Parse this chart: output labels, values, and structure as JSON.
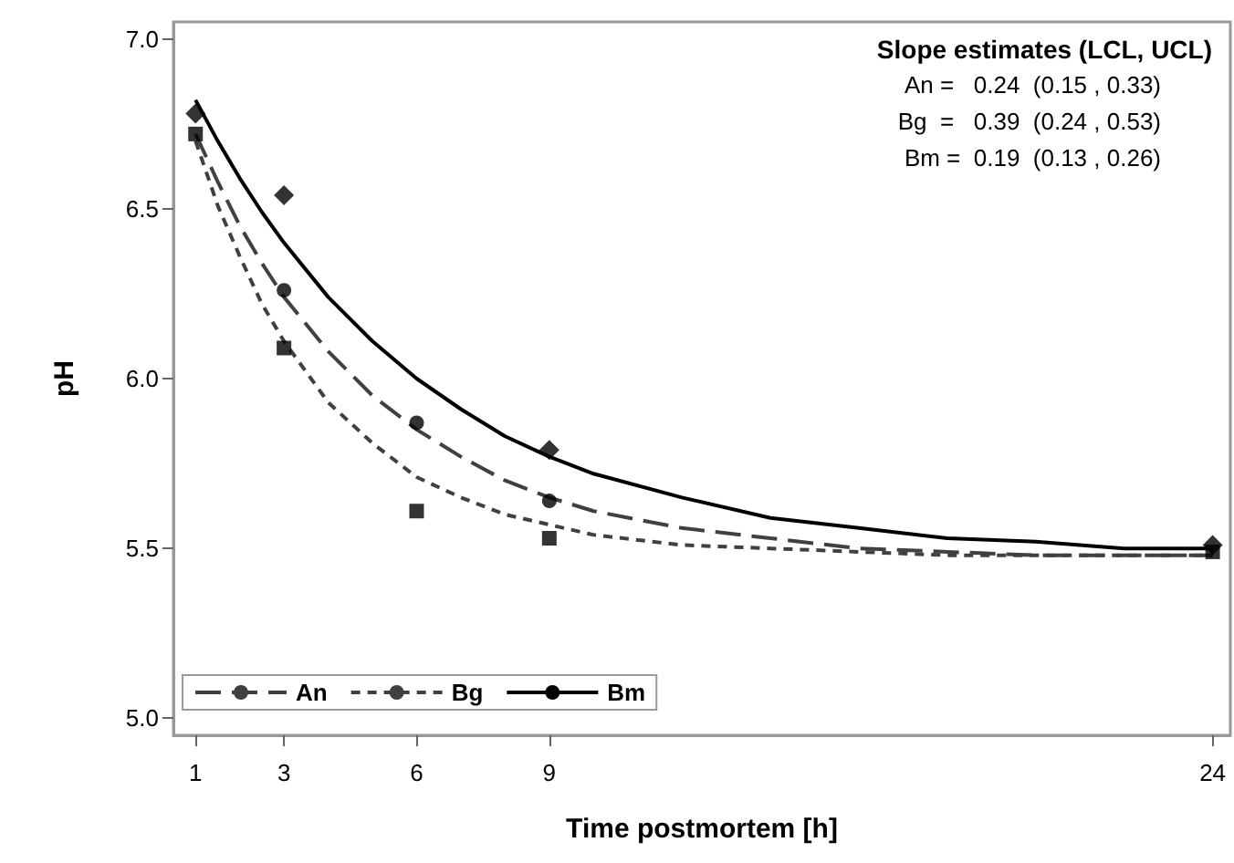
{
  "chart_data": {
    "type": "line",
    "xlabel": "Time postmortem [h]",
    "ylabel": "pH",
    "annotations": [
      "Slope estimates (LCL, UCL)",
      "An =   0.24  (0.15 , 0.33)",
      "Bg  =   0.39  (0.24 , 0.53)",
      "Bm =  0.19  (0.13 , 0.26)"
    ],
    "xlim": [
      0.5,
      24.4
    ],
    "xticks": [
      1,
      3,
      6,
      9,
      24
    ],
    "ylim": [
      4.95,
      7.05
    ],
    "yticks": [
      {
        "value": 5,
        "label": "5.0"
      },
      {
        "value": 5.5,
        "label": "5.5"
      },
      {
        "value": 6,
        "label": "6.0"
      },
      {
        "value": 6.5,
        "label": "6.5"
      },
      {
        "value": 7,
        "label": "7.0"
      }
    ],
    "grid": false,
    "legend": "bottom left",
    "marker": "none",
    "series": [
      {
        "name": "An",
        "color": "#404040",
        "line_style": "dashed",
        "x": [
          1,
          1.5,
          2,
          2.5,
          3,
          4,
          5,
          6,
          7,
          8,
          9,
          10,
          12,
          14,
          16,
          18,
          20,
          22,
          24
        ],
        "values": [
          6.72,
          6.58,
          6.45,
          6.34,
          6.24,
          6.08,
          5.95,
          5.85,
          5.77,
          5.7,
          5.65,
          5.61,
          5.56,
          5.53,
          5.5,
          5.49,
          5.48,
          5.48,
          5.48
        ]
      },
      {
        "name": "Bg",
        "color": "#404040",
        "line_style": "dotted",
        "x": [
          1,
          1.5,
          2,
          2.5,
          3,
          4,
          5,
          6,
          7,
          8,
          9,
          10,
          12,
          14,
          16,
          18,
          20,
          22,
          24
        ],
        "values": [
          6.7,
          6.51,
          6.36,
          6.22,
          6.11,
          5.93,
          5.81,
          5.71,
          5.65,
          5.6,
          5.57,
          5.54,
          5.51,
          5.5,
          5.49,
          5.48,
          5.48,
          5.48,
          5.48
        ]
      },
      {
        "name": "Bm",
        "color": "#000000",
        "line_style": "solid",
        "x": [
          1,
          1.5,
          2,
          2.5,
          3,
          4,
          5,
          6,
          7,
          8,
          9,
          10,
          12,
          14,
          16,
          18,
          20,
          22,
          24
        ],
        "values": [
          6.82,
          6.7,
          6.59,
          6.49,
          6.4,
          6.24,
          6.11,
          6.0,
          5.91,
          5.83,
          5.77,
          5.72,
          5.65,
          5.59,
          5.56,
          5.53,
          5.52,
          5.5,
          5.5
        ]
      },
      {
        "type": "scatter",
        "color": "#000000",
        "marker": "circle",
        "x": [
          3,
          6,
          9
        ],
        "values": [
          6.26,
          5.87,
          5.64
        ]
      },
      {
        "type": "scatter",
        "color": "#000000",
        "marker": "square",
        "x": [
          1,
          3,
          6,
          9,
          24
        ],
        "values": [
          6.72,
          6.09,
          5.61,
          5.53,
          5.49
        ]
      },
      {
        "type": "scatter",
        "color": "#000000",
        "marker": "diamond",
        "x": [
          1,
          3,
          9,
          24
        ],
        "values": [
          6.78,
          6.54,
          5.79,
          5.51
        ]
      }
    ]
  }
}
